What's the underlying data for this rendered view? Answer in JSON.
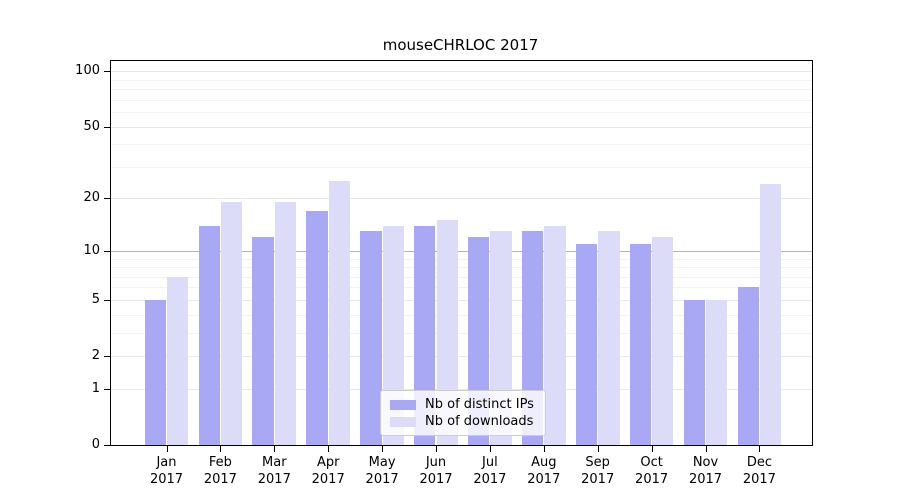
{
  "chart_data": {
    "type": "bar",
    "title": "mouseCHRLOC 2017",
    "categories": [
      {
        "month": "Jan",
        "year": "2017"
      },
      {
        "month": "Feb",
        "year": "2017"
      },
      {
        "month": "Mar",
        "year": "2017"
      },
      {
        "month": "Apr",
        "year": "2017"
      },
      {
        "month": "May",
        "year": "2017"
      },
      {
        "month": "Jun",
        "year": "2017"
      },
      {
        "month": "Jul",
        "year": "2017"
      },
      {
        "month": "Aug",
        "year": "2017"
      },
      {
        "month": "Sep",
        "year": "2017"
      },
      {
        "month": "Oct",
        "year": "2017"
      },
      {
        "month": "Nov",
        "year": "2017"
      },
      {
        "month": "Dec",
        "year": "2017"
      }
    ],
    "series": [
      {
        "name": "Nb of distinct IPs",
        "color": "#a8a8f5",
        "values": [
          5,
          14,
          12,
          17,
          13,
          14,
          12,
          13,
          11,
          11,
          5,
          6
        ]
      },
      {
        "name": "Nb of downloads",
        "color": "#dcdcf8",
        "values": [
          7,
          19,
          19,
          25,
          14,
          15,
          13,
          14,
          13,
          12,
          5,
          24
        ]
      }
    ],
    "y_axis": {
      "scale": "log1p",
      "tick_values": [
        0,
        1,
        2,
        5,
        10,
        20,
        50,
        100
      ],
      "tick_labels": [
        "0",
        "1",
        "2",
        "5",
        "10",
        "20",
        "50",
        "100"
      ],
      "max": 113.5,
      "gridlines": {
        "dark": [
          10
        ],
        "light": [
          1,
          2,
          5,
          20,
          50,
          100
        ],
        "faint": [
          3,
          4,
          6,
          7,
          8,
          9,
          30,
          40,
          60,
          70,
          80,
          90
        ]
      }
    },
    "legend": {
      "position": "bottom-center"
    },
    "colors": {
      "grid_dark": "#b4b4b4",
      "grid_light": "#e8e8e8",
      "grid_faint": "#f2f2f2",
      "spine": "#000000",
      "background": "#ffffff"
    },
    "xlabel": "",
    "ylabel": ""
  }
}
